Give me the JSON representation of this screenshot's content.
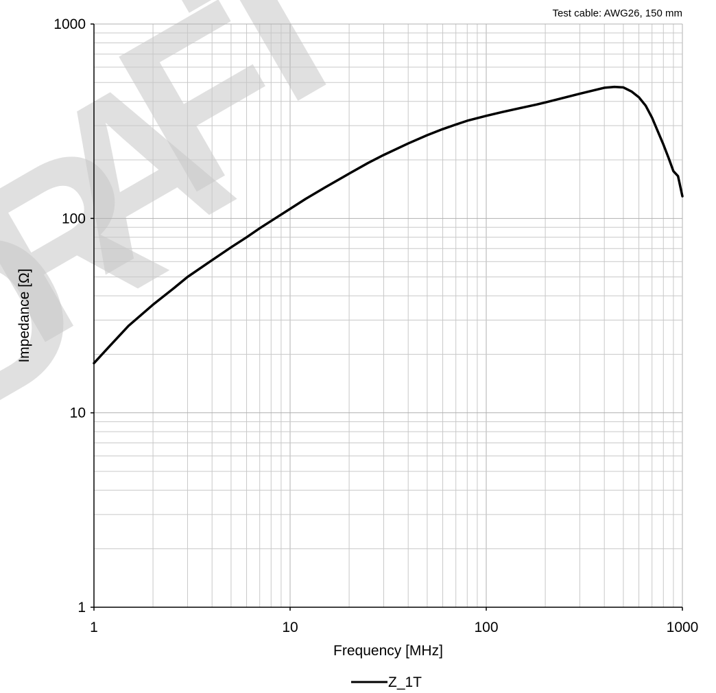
{
  "chart_data": {
    "type": "line",
    "x_scale": "log",
    "y_scale": "log",
    "xlim": [
      1,
      1000
    ],
    "ylim": [
      1,
      1000
    ],
    "xlabel": "Frequency [MHz]",
    "ylabel": "Impedance [Ω]",
    "annotation": "Test cable: AWG26, 150 mm",
    "x_ticks": [
      "1",
      "10",
      "100",
      "1000"
    ],
    "y_ticks": [
      "1",
      "10",
      "100",
      "1000"
    ],
    "grid": true,
    "legend_position": "bottom-center",
    "watermark": "DRAFT",
    "series": [
      {
        "name": "Z_1T",
        "color": "#000000",
        "x": [
          1,
          1.2,
          1.5,
          2,
          2.5,
          3,
          4,
          5,
          6,
          7,
          8,
          10,
          12,
          15,
          20,
          25,
          30,
          40,
          50,
          60,
          70,
          80,
          100,
          120,
          150,
          180,
          200,
          250,
          300,
          350,
          400,
          450,
          500,
          550,
          600,
          650,
          700,
          750,
          800,
          850,
          900,
          950,
          1000
        ],
        "y": [
          18,
          22,
          28,
          36,
          43,
          50,
          61,
          71,
          80,
          89,
          97,
          112,
          126,
          144,
          170,
          193,
          212,
          243,
          268,
          288,
          304,
          318,
          337,
          352,
          370,
          385,
          395,
          418,
          438,
          455,
          470,
          475,
          472,
          450,
          420,
          380,
          330,
          280,
          240,
          205,
          175,
          165,
          130
        ]
      }
    ]
  }
}
